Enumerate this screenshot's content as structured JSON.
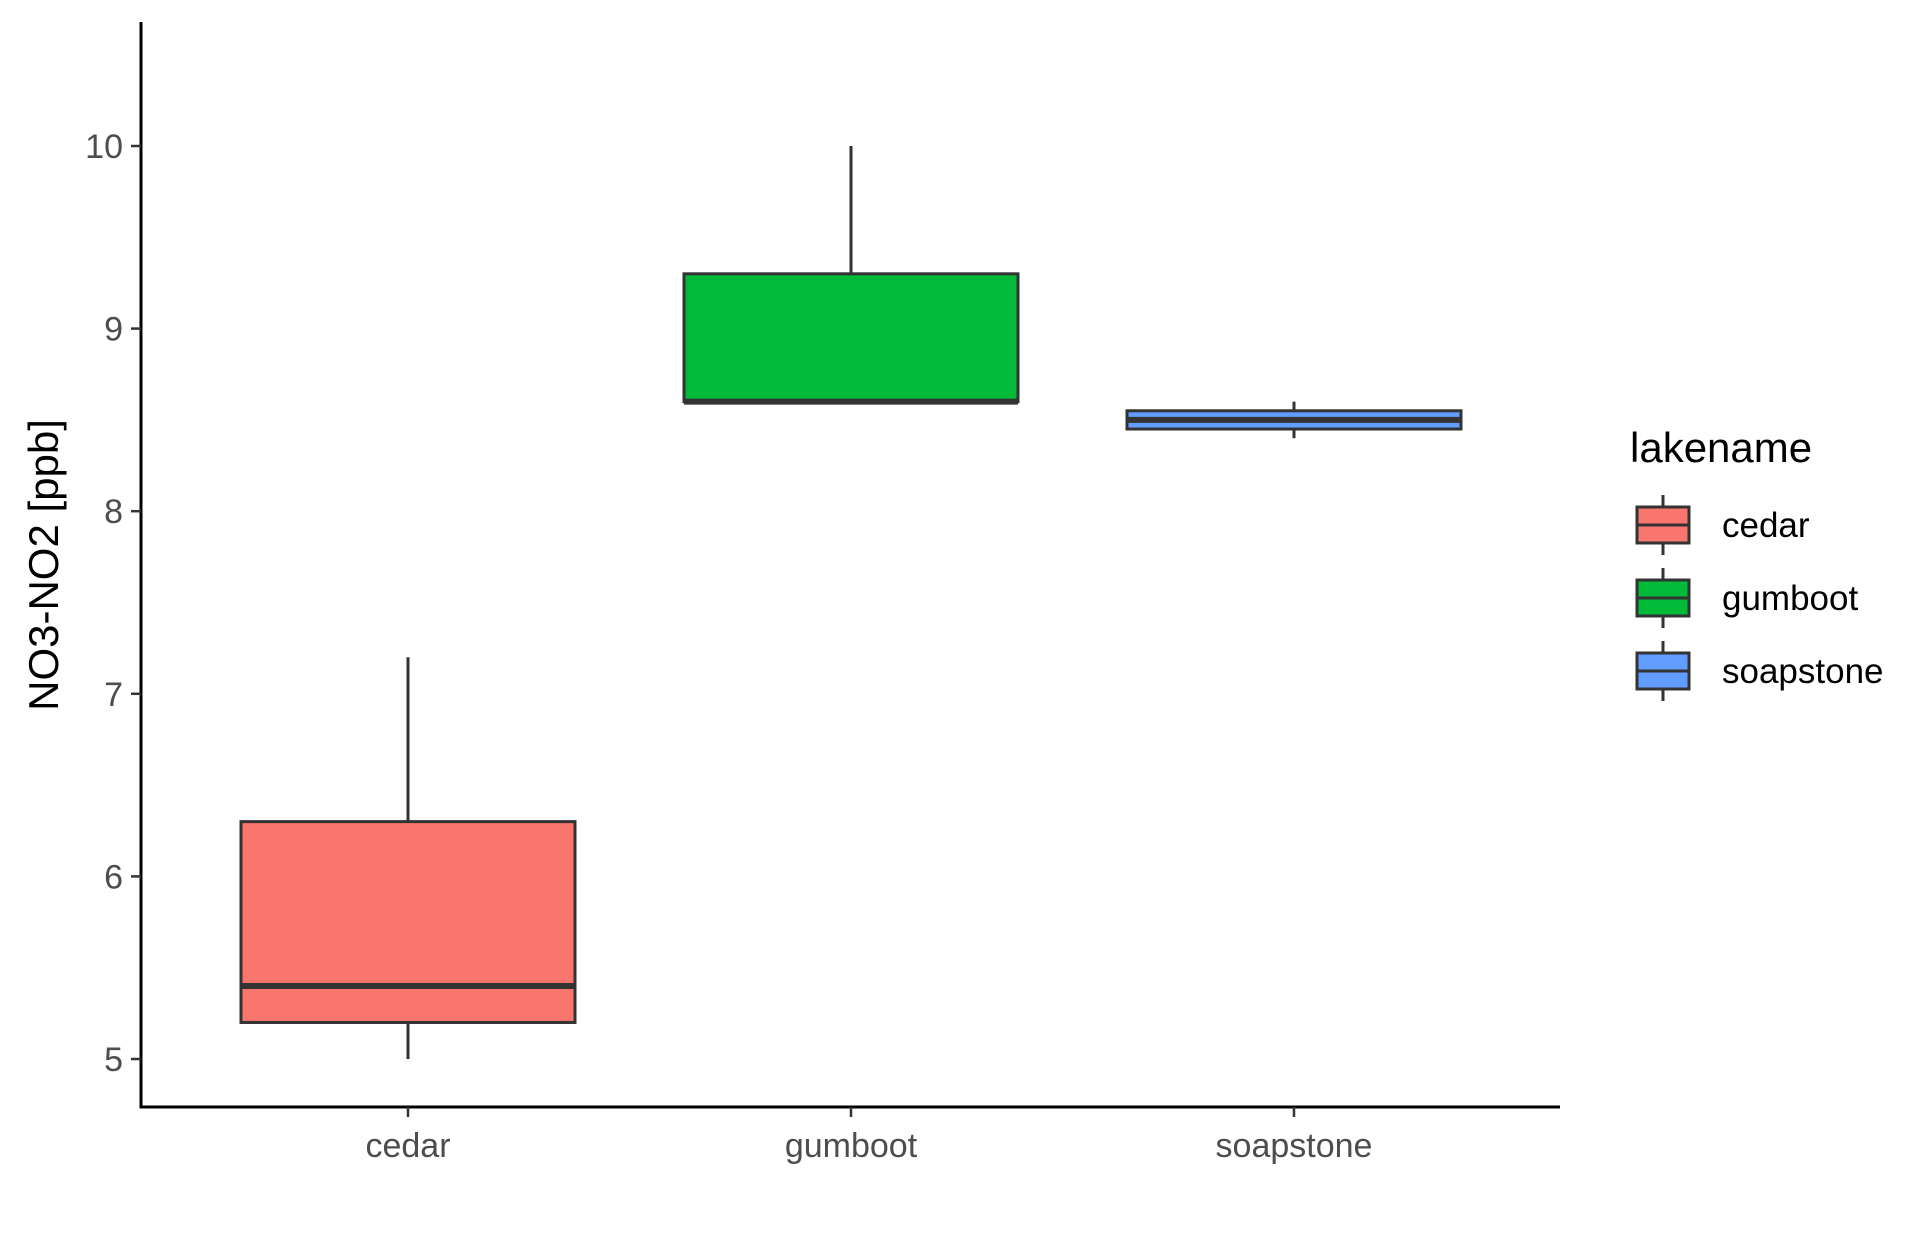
{
  "chart_data": {
    "type": "boxplot",
    "title": "",
    "xlabel": "",
    "ylabel": "NO3-NO2 [ppb]",
    "ylim": [
      4.75,
      10.25
    ],
    "yticks": [
      5,
      6,
      7,
      8,
      9,
      10
    ],
    "ytick_labels": [
      "5",
      "6",
      "7",
      "8",
      "9",
      "10"
    ],
    "categories": [
      "cedar",
      "gumboot",
      "soapstone"
    ],
    "series": [
      {
        "name": "cedar",
        "color": "#F8766D",
        "min": 5.0,
        "q1": 5.2,
        "median": 5.4,
        "q3": 6.3,
        "max": 7.2
      },
      {
        "name": "gumboot",
        "color": "#00BA38",
        "min": 8.6,
        "q1": 8.6,
        "median": 8.6,
        "q3": 9.3,
        "max": 10.0
      },
      {
        "name": "soapstone",
        "color": "#619CFF",
        "min": 8.4,
        "q1": 8.45,
        "median": 8.5,
        "q3": 8.55,
        "max": 8.6
      }
    ],
    "legend": {
      "title": "lakename",
      "position": "right",
      "entries": [
        "cedar",
        "gumboot",
        "soapstone"
      ]
    },
    "grid": false
  }
}
